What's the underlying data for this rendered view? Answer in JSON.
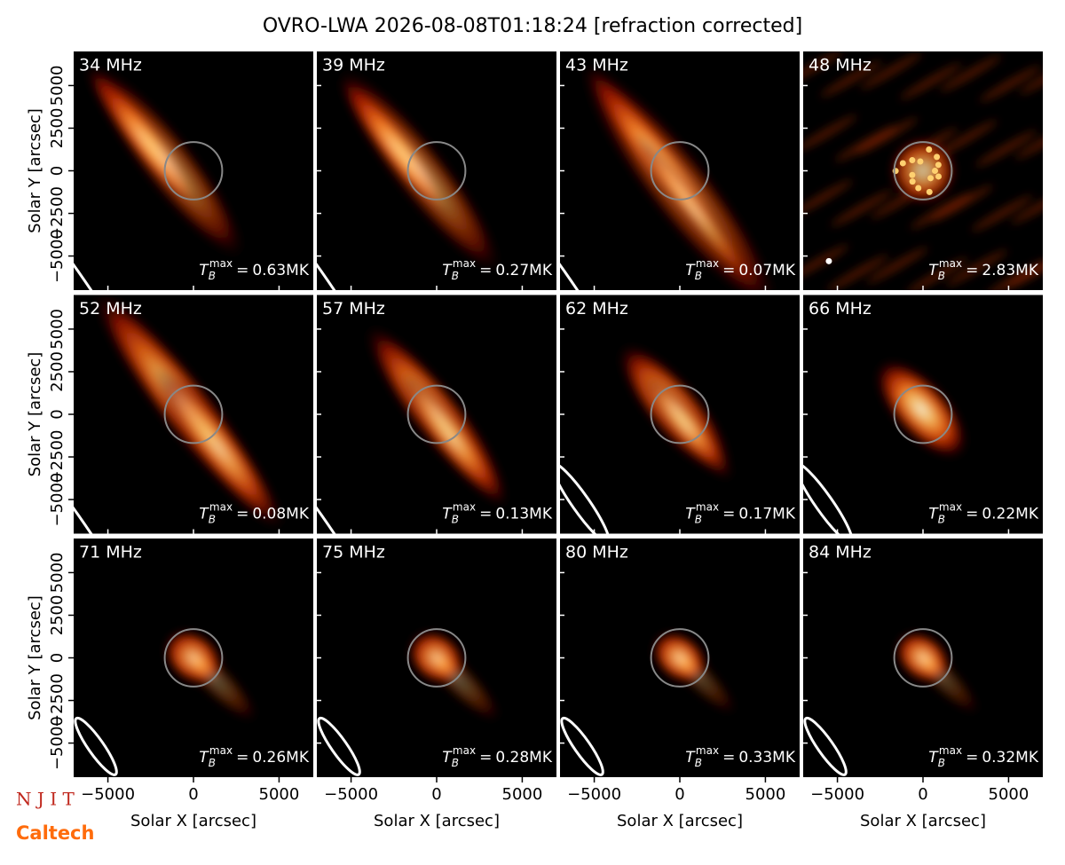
{
  "chart_data": {
    "type": "image_grid",
    "title": "OVRO-LWA 2026-08-08T01:18:24 [refraction corrected]",
    "xlabel": "Solar X [arcsec]",
    "ylabel": "Solar Y [arcsec]",
    "xlim": [
      -7000,
      7000
    ],
    "ylim": [
      -7000,
      7000
    ],
    "xticks": [
      {
        "value": -5000,
        "label": "−5000"
      },
      0,
      5000
    ],
    "yticks": [
      {
        "value": -5000,
        "label": "−5000"
      },
      {
        "value": -2500,
        "label": "−2500"
      },
      0,
      2500,
      5000
    ],
    "tb_symbol": "T",
    "tb_sub": "B",
    "tb_sup": "max",
    "tb_equals": "=",
    "panels": [
      {
        "label": "34 MHz",
        "tb_value": "0.63MK"
      },
      {
        "label": "39 MHz",
        "tb_value": "0.27MK"
      },
      {
        "label": "43 MHz",
        "tb_value": "0.07MK"
      },
      {
        "label": "48 MHz",
        "tb_value": "2.83MK"
      },
      {
        "label": "52 MHz",
        "tb_value": "0.08MK"
      },
      {
        "label": "57 MHz",
        "tb_value": "0.13MK"
      },
      {
        "label": "62 MHz",
        "tb_value": "0.17MK"
      },
      {
        "label": "66 MHz",
        "tb_value": "0.22MK"
      },
      {
        "label": "71 MHz",
        "tb_value": "0.26MK"
      },
      {
        "label": "75 MHz",
        "tb_value": "0.28MK"
      },
      {
        "label": "80 MHz",
        "tb_value": "0.33MK"
      },
      {
        "label": "84 MHz",
        "tb_value": "0.32MK"
      }
    ],
    "logos": [
      "N J I T",
      "Caltech"
    ]
  }
}
